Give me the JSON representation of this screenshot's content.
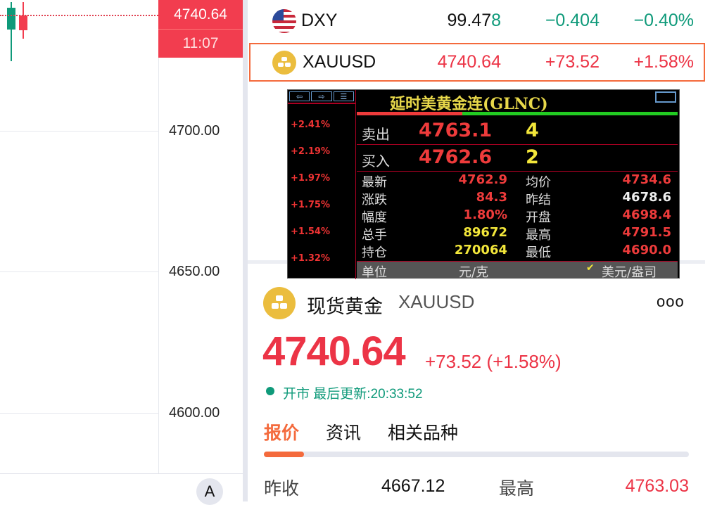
{
  "chart": {
    "y_ticks": [
      "4700.00",
      "4650.00",
      "4600.00"
    ],
    "last_price": "4740.64",
    "countdown": "11:07",
    "font_button": "A",
    "colors": {
      "up": "#f23d4f",
      "down": "#0f9a7a"
    }
  },
  "watchlist": [
    {
      "symbol": "DXY",
      "icon": "us-flag-icon",
      "price_main": "99.47",
      "price_tick": "8",
      "change": "−0.404",
      "change_pct": "−0.40%"
    },
    {
      "symbol": "XAUUSD",
      "icon": "gold-bars-icon",
      "price": "4740.64",
      "change": "+73.52",
      "change_pct": "+1.58%",
      "selected": true
    }
  ],
  "overlay": {
    "title": "延时美黄金连(GLNC)",
    "side_pcts": [
      "+2.41%",
      "+2.19%",
      "+1.97%",
      "+1.75%",
      "+1.54%",
      "+1.32%"
    ],
    "sell": {
      "label": "卖出",
      "price": "4763.1",
      "qty": "4"
    },
    "buy": {
      "label": "买入",
      "price": "4762.6",
      "qty": "2"
    },
    "stats": [
      {
        "l1": "最新",
        "v1": "4762.9",
        "l2": "均价",
        "v2": "4734.6"
      },
      {
        "l1": "涨跌",
        "v1": "84.3",
        "l2": "昨结",
        "v2": "4678.6"
      },
      {
        "l1": "幅度",
        "v1": "1.80%",
        "l2": "开盘",
        "v2": "4698.4"
      },
      {
        "l1": "总手",
        "v1": "89672",
        "l2": "最高",
        "v2": "4791.5"
      },
      {
        "l1": "持仓",
        "v1": "270064",
        "l2": "最低",
        "v2": "4690.0"
      }
    ],
    "unit": {
      "label": "单位",
      "opt1": "元/克",
      "opt2": "美元/盎司",
      "checked": "美元/盎司"
    }
  },
  "detail": {
    "name": "现货黄金",
    "symbol": "XAUUSD",
    "more": "ooo",
    "price": "4740.64",
    "change": "+73.52 (+1.58%)",
    "status": "开市",
    "updated": "最后更新:20:33:52",
    "tabs": [
      "报价",
      "资讯",
      "相关品种"
    ],
    "active_tab": "报价",
    "row": {
      "l1": "昨收",
      "v1": "4667.12",
      "l2": "最高",
      "v2": "4763.03"
    },
    "colors": {
      "up": "#ec3446",
      "accent": "#f46a3c",
      "open": "#0f9a7a"
    }
  }
}
